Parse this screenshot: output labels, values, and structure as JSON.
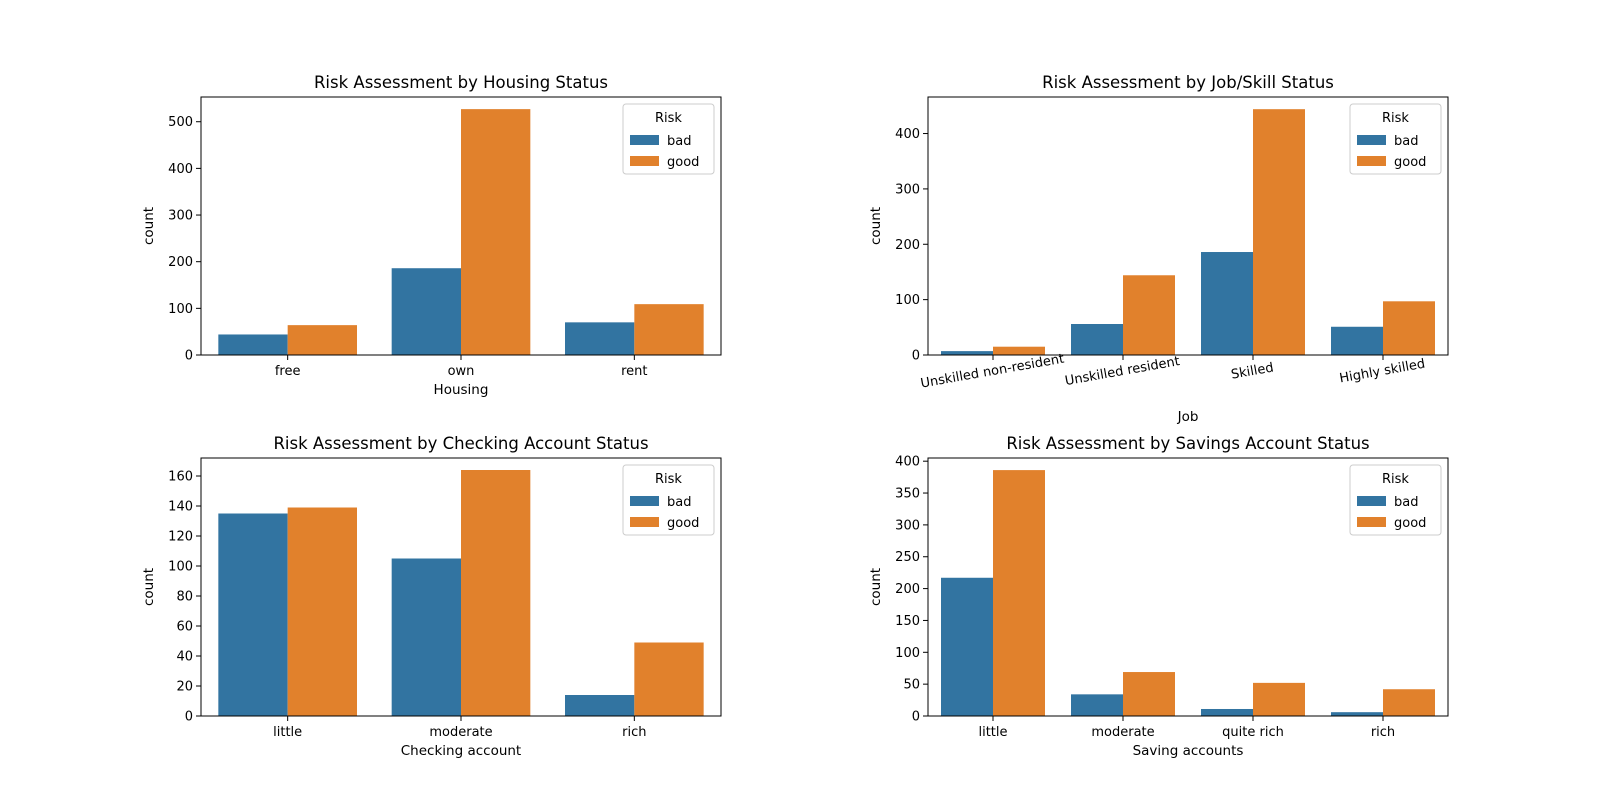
{
  "colors": {
    "bad": "#3274a1",
    "good": "#e1812c"
  },
  "chart_data": [
    {
      "type": "bar",
      "title": "Risk Assessment by Housing Status",
      "xlabel": "Housing",
      "ylabel": "count",
      "categories": [
        "free",
        "own",
        "rent"
      ],
      "series": [
        {
          "name": "bad",
          "values": [
            44,
            186,
            70
          ]
        },
        {
          "name": "good",
          "values": [
            64,
            527,
            109
          ]
        }
      ],
      "ylim": [
        0,
        553
      ],
      "yticks": [
        0,
        100,
        200,
        300,
        400,
        500
      ],
      "legend": {
        "title": "Risk",
        "placement": "top-right"
      },
      "grid": false
    },
    {
      "type": "bar",
      "title": "Risk Assessment by Job/Skill Status",
      "xlabel": "Job",
      "ylabel": "count",
      "categories": [
        "Unskilled non-resident",
        "Unskilled resident",
        "Skilled",
        "Highly skilled"
      ],
      "series": [
        {
          "name": "bad",
          "values": [
            7,
            56,
            186,
            51
          ]
        },
        {
          "name": "good",
          "values": [
            15,
            144,
            444,
            97
          ]
        }
      ],
      "ylim": [
        0,
        466
      ],
      "yticks": [
        0,
        100,
        200,
        300,
        400
      ],
      "xtick_rotation": 10,
      "legend": {
        "title": "Risk",
        "placement": "top-right"
      },
      "grid": false
    },
    {
      "type": "bar",
      "title": "Risk Assessment by Checking Account Status",
      "xlabel": "Checking account",
      "ylabel": "count",
      "categories": [
        "little",
        "moderate",
        "rich"
      ],
      "series": [
        {
          "name": "bad",
          "values": [
            135,
            105,
            14
          ]
        },
        {
          "name": "good",
          "values": [
            139,
            164,
            49
          ]
        }
      ],
      "ylim": [
        0,
        172
      ],
      "yticks": [
        0,
        20,
        40,
        60,
        80,
        100,
        120,
        140,
        160
      ],
      "legend": {
        "title": "Risk",
        "placement": "top-right"
      },
      "grid": false
    },
    {
      "type": "bar",
      "title": "Risk Assessment by Savings Account Status",
      "xlabel": "Saving accounts",
      "ylabel": "count",
      "categories": [
        "little",
        "moderate",
        "quite rich",
        "rich"
      ],
      "series": [
        {
          "name": "bad",
          "values": [
            217,
            34,
            11,
            6
          ]
        },
        {
          "name": "good",
          "values": [
            386,
            69,
            52,
            42
          ]
        }
      ],
      "ylim": [
        0,
        405
      ],
      "yticks": [
        0,
        50,
        100,
        150,
        200,
        250,
        300,
        350,
        400
      ],
      "legend": {
        "title": "Risk",
        "placement": "top-right"
      },
      "grid": false
    }
  ]
}
